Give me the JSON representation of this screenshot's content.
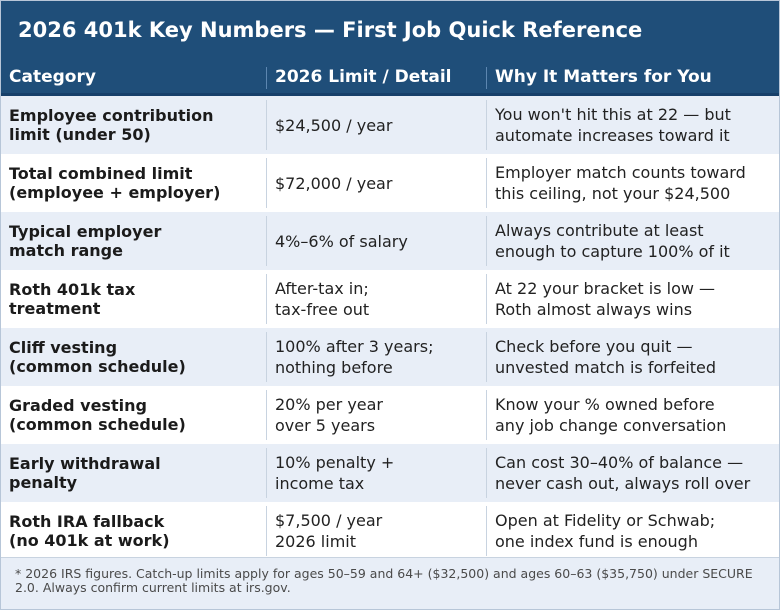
{
  "title": "2026 401k Key Numbers — First Job Quick Reference",
  "table": {
    "headers": [
      "Category",
      "2026 Limit / Detail",
      "Why It Matters for You"
    ],
    "rows": [
      {
        "category": "Employee contribution\nlimit (under 50)",
        "detail": "$24,500 / year",
        "why": "You won't hit this at 22 — but\nautomate increases toward it"
      },
      {
        "category": "Total combined limit\n(employee + employer)",
        "detail": "$72,000 / year",
        "why": "Employer match counts toward\nthis ceiling, not your $24,500"
      },
      {
        "category": "Typical employer\nmatch range",
        "detail": "4%–6% of salary",
        "why": "Always contribute at least\nenough to capture 100% of it"
      },
      {
        "category": "Roth 401k tax\ntreatment",
        "detail": "After-tax in;\ntax-free out",
        "why": "At 22 your bracket is low —\nRoth almost always wins"
      },
      {
        "category": "Cliff vesting\n(common schedule)",
        "detail": "100% after 3 years;\nnothing before",
        "why": "Check before you quit —\nunvested match is forfeited"
      },
      {
        "category": "Graded vesting\n(common schedule)",
        "detail": "20% per year\nover 5 years",
        "why": "Know your % owned before\nany job change conversation"
      },
      {
        "category": "Early withdrawal\npenalty",
        "detail": "10% penalty +\nincome tax",
        "why": "Can cost 30–40% of balance —\nnever cash out, always roll over"
      },
      {
        "category": "Roth IRA fallback\n(no 401k at work)",
        "detail": "$7,500 / year\n2026 limit",
        "why": "Open at Fidelity or Schwab;\none index fund is enough"
      }
    ]
  },
  "footnote": "* 2026 IRS figures. Catch-up limits apply for ages 50–59 and 64+ ($32,500) and ages 60–63 ($35,750) under SECURE 2.0. Always confirm current limits at irs.gov."
}
